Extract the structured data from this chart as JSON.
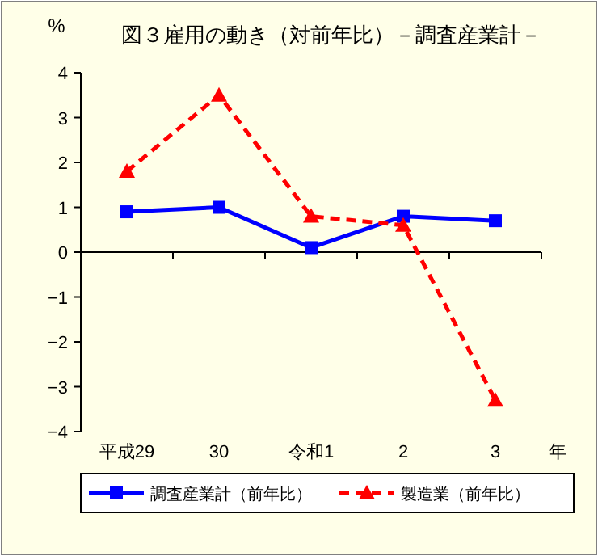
{
  "chart_data": {
    "type": "line",
    "title": "図３雇用の動き（対前年比）－調査産業計－",
    "ylabel": "%",
    "xlabel": "年",
    "categories": [
      "平成29",
      "30",
      "令和1",
      "2",
      "3"
    ],
    "series": [
      {
        "name": "調査産業計（前年比）",
        "color": "#0000ff",
        "values": [
          0.9,
          1.0,
          0.1,
          0.8,
          0.7
        ],
        "marker": "square",
        "line_style": "solid"
      },
      {
        "name": "製造業（前年比）",
        "color": "#ff0000",
        "values": [
          1.8,
          3.5,
          0.8,
          0.6,
          -3.3
        ],
        "marker": "triangle",
        "line_style": "dashed"
      }
    ],
    "ylim": [
      -4,
      4
    ],
    "yticks": [
      -4,
      -3,
      -2,
      -1,
      0,
      1,
      2,
      3,
      4
    ],
    "legend": "bottom"
  }
}
